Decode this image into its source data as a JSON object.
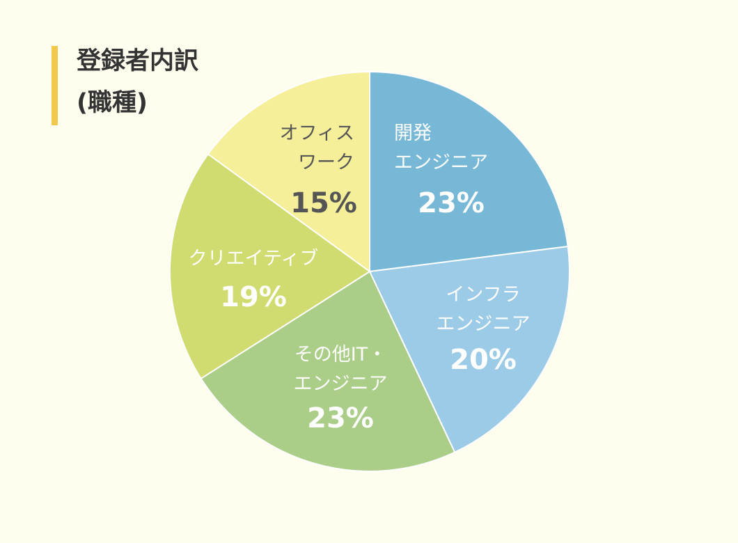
{
  "header": {
    "title_line1": "登録者内訳",
    "title_line2": "(職種)"
  },
  "chart_data": {
    "type": "pie",
    "title": "登録者内訳 (職種)",
    "slices": [
      {
        "label": "開発\nエンジニア",
        "value": 23,
        "display": "23%",
        "color": "#76b8d6",
        "text_color": "#ffffff"
      },
      {
        "label": "インフラ\nエンジニア",
        "value": 20,
        "display": "20%",
        "color": "#9ccbe7",
        "text_color": "#ffffff"
      },
      {
        "label": "その他IT・\nエンジニア",
        "value": 23,
        "display": "23%",
        "color": "#aacd88",
        "text_color": "#ffffff"
      },
      {
        "label": "クリエイティブ",
        "value": 19,
        "display": "19%",
        "color": "#d0dc70",
        "text_color": "#ffffff"
      },
      {
        "label": "オフィス\nワーク",
        "value": 15,
        "display": "15%",
        "color": "#f6ef9a",
        "text_color": "#555555"
      }
    ],
    "start": "12 o'clock",
    "direction": "clockwise",
    "legend": "none"
  }
}
